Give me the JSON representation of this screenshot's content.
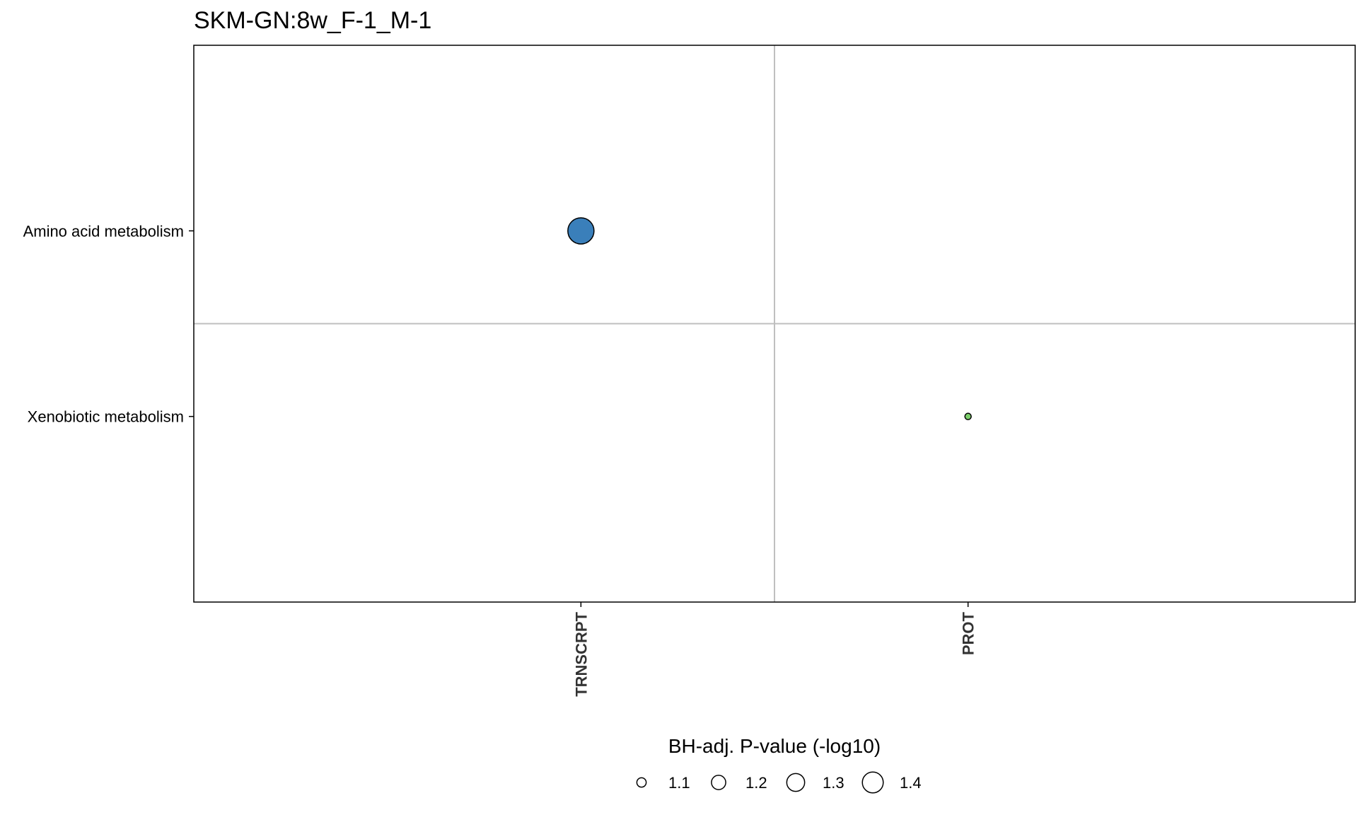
{
  "chart_data": {
    "type": "scatter",
    "title": "SKM-GN:8w_F-1_M-1",
    "xlabel": "",
    "ylabel": "",
    "x_categories": [
      "TRNSCRPT",
      "PROT"
    ],
    "y_categories": [
      "Amino acid metabolism",
      "Xenobiotic metabolism"
    ],
    "points": [
      {
        "x": "TRNSCRPT",
        "y": "Amino acid metabolism",
        "size_value": 1.45,
        "color": "#3a7fba"
      },
      {
        "x": "PROT",
        "y": "Xenobiotic metabolism",
        "size_value": 1.05,
        "color": "#7ccf6b"
      }
    ],
    "legend": {
      "title": "BH-adj. P-value (-log10)",
      "position": "bottom",
      "entries": [
        {
          "label": "1.1",
          "value": 1.1
        },
        {
          "label": "1.2",
          "value": 1.2
        },
        {
          "label": "1.3",
          "value": 1.3
        },
        {
          "label": "1.4",
          "value": 1.4
        }
      ]
    },
    "grid": true
  }
}
